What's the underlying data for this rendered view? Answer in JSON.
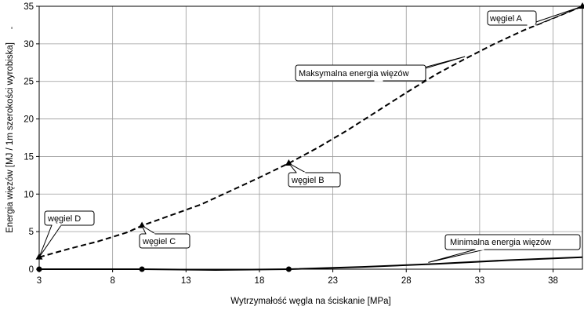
{
  "chart_data": {
    "type": "line",
    "title": "",
    "xlabel": "Wytrzymałość węgla na ściskanie [MPa]",
    "ylabel": "Energia więzów [MJ / 1m szerokości wyrobiska]",
    "xlim": [
      3,
      40
    ],
    "ylim": [
      0,
      35
    ],
    "x_ticks": [
      3,
      8,
      13,
      18,
      23,
      28,
      33,
      38
    ],
    "y_ticks": [
      0,
      5,
      10,
      15,
      20,
      25,
      30,
      35
    ],
    "grid": true,
    "series": [
      {
        "label": "Maksymalna energia więzów",
        "style": "dashed",
        "color": "#000000",
        "points": [
          [
            3,
            1.6
          ],
          [
            5,
            2.7
          ],
          [
            7,
            3.7
          ],
          [
            9,
            4.9
          ],
          [
            10,
            5.8
          ],
          [
            12,
            7.2
          ],
          [
            14,
            8.6
          ],
          [
            16,
            10.4
          ],
          [
            18,
            12.2
          ],
          [
            20,
            14.1
          ],
          [
            22,
            16.2
          ],
          [
            24,
            18.5
          ],
          [
            26,
            21.0
          ],
          [
            28,
            23.5
          ],
          [
            30,
            25.9
          ],
          [
            32,
            28.0
          ],
          [
            34,
            30.0
          ],
          [
            36,
            31.8
          ],
          [
            38,
            33.4
          ],
          [
            40,
            35.0
          ]
        ]
      },
      {
        "label": "Minimalna energia więzów",
        "style": "solid",
        "color": "#000000",
        "points": [
          [
            3,
            0.0
          ],
          [
            10,
            0.0
          ],
          [
            15,
            -0.1
          ],
          [
            20,
            0.0
          ],
          [
            25,
            0.3
          ],
          [
            30,
            0.7
          ],
          [
            35,
            1.2
          ],
          [
            40,
            1.6
          ]
        ]
      }
    ],
    "markers": [
      {
        "label": "węgiel D",
        "x": 3,
        "y": 1.6,
        "shape": "triangle"
      },
      {
        "label": "węgiel C",
        "x": 10,
        "y": 5.8,
        "shape": "triangle"
      },
      {
        "label": "węgiel B",
        "x": 20,
        "y": 14.1,
        "shape": "triangle"
      },
      {
        "label": "węgiel A",
        "x": 40,
        "y": 35.0,
        "shape": "triangle"
      },
      {
        "label": "",
        "x": 3,
        "y": 0,
        "shape": "circle"
      },
      {
        "label": "",
        "x": 10,
        "y": 0,
        "shape": "circle"
      },
      {
        "label": "",
        "x": 20,
        "y": 0,
        "shape": "circle"
      }
    ],
    "callouts": [
      {
        "text": "węgiel A",
        "anchor": [
          40,
          35.0
        ]
      },
      {
        "text": "Maksymalna energia więzów",
        "anchor": [
          32,
          28.3
        ]
      },
      {
        "text": "węgiel B",
        "anchor": [
          20,
          14.1
        ]
      },
      {
        "text": "węgiel C",
        "anchor": [
          10,
          5.8
        ]
      },
      {
        "text": "węgiel D",
        "anchor": [
          3,
          1.6
        ]
      },
      {
        "text": "Minimalna energia więzów",
        "anchor": [
          29.5,
          0.9
        ]
      }
    ],
    "stray_mark": "'"
  }
}
